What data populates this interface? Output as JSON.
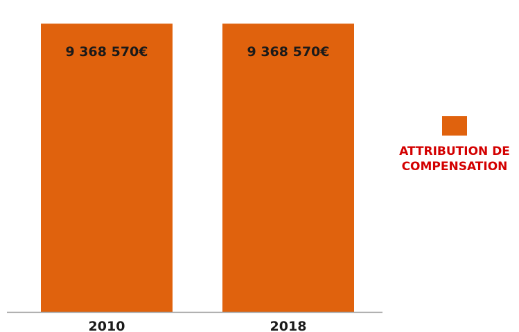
{
  "chart_data": {
    "type": "bar",
    "title": "",
    "xlabel": "",
    "ylabel": "",
    "categories": [
      "2010",
      "2018"
    ],
    "series": [
      {
        "name": "ATTRIBUTION DE COMPENSATION",
        "values": [
          9368570,
          9368570
        ],
        "data_labels": [
          "9 368 570€",
          "9 368 570€"
        ],
        "color": "#e0620d"
      }
    ],
    "ylim": [
      0,
      9800000
    ],
    "grid": false,
    "legend_position": "right",
    "axis_color": "#999999",
    "label_color": "#1a1a1a",
    "legend_text_color": "#d30000"
  }
}
